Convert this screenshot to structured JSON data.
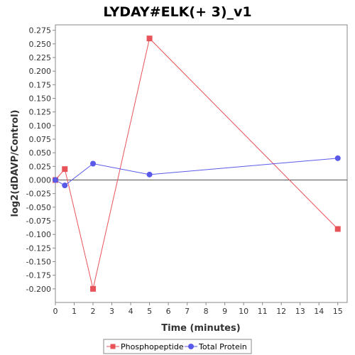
{
  "chart_data": {
    "type": "line",
    "title": "LYDAY#ELK(+ 3)_v1",
    "xlabel": "Time (minutes)",
    "ylabel": "log2(dDAVP/Control)",
    "xlim": [
      0,
      15.5
    ],
    "ylim": [
      -0.225,
      0.285
    ],
    "x_ticks": [
      0,
      1,
      2,
      3,
      4,
      5,
      6,
      7,
      8,
      9,
      10,
      11,
      12,
      13,
      14,
      15
    ],
    "x_tick_labels": [
      "0",
      "1",
      "2",
      "3",
      "4",
      "5",
      "6",
      "7",
      "8",
      "9",
      "10",
      "11",
      "12",
      "13",
      "14",
      "15"
    ],
    "y_ticks": [
      0.275,
      0.25,
      0.225,
      0.2,
      0.175,
      0.15,
      0.125,
      0.1,
      0.075,
      0.05,
      0.025,
      0.0,
      -0.025,
      -0.05,
      -0.075,
      -0.1,
      -0.125,
      -0.15,
      -0.175,
      -0.2
    ],
    "y_tick_labels": [
      "0.275",
      "0.250",
      "0.225",
      "0.200",
      "0.175",
      "0.150",
      "0.125",
      "0.100",
      "0.075",
      "0.050",
      "0.025",
      "0.000",
      "-0.025",
      "-0.050",
      "-0.075",
      "-0.100",
      "-0.125",
      "-0.150",
      "-0.175",
      "-0.200"
    ],
    "reference_line_y": 0,
    "grid": false,
    "legend_position": "bottom",
    "series": [
      {
        "name": "Phosphopeptide",
        "color": "#e8535a",
        "marker": "square",
        "x": [
          0,
          0.5,
          2,
          5,
          15
        ],
        "y": [
          0.0,
          0.02,
          -0.2,
          0.26,
          -0.09
        ]
      },
      {
        "name": "Total Protein",
        "color": "#5a5aea",
        "marker": "circle",
        "x": [
          0,
          0.5,
          2,
          5,
          15
        ],
        "y": [
          0.0,
          -0.01,
          0.03,
          0.01,
          0.04
        ]
      }
    ]
  }
}
